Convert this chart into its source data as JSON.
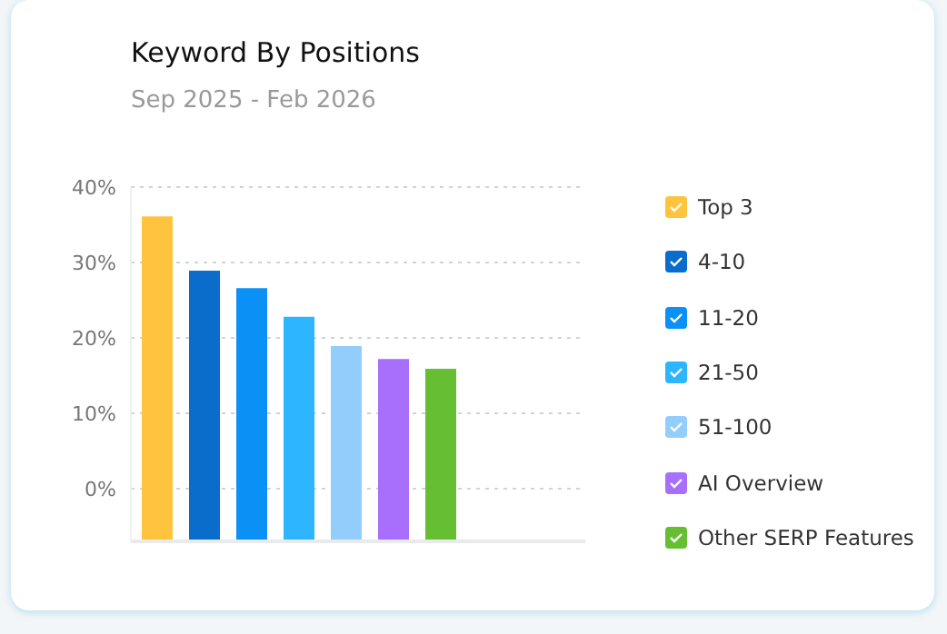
{
  "chart_data": {
    "type": "bar",
    "title": "Keyword By Positions",
    "subtitle": "Sep 2025 - Feb 2026",
    "categories": [
      null
    ],
    "series": [
      {
        "name": "Top 3",
        "color": "#ffc43d",
        "values": [
          43.1
        ],
        "base": [
          -7
        ]
      },
      {
        "name": "4-10",
        "color": "#0a6ccb",
        "values": [
          35.9
        ],
        "base": [
          -7
        ]
      },
      {
        "name": "11-20",
        "color": "#0b91f5",
        "values": [
          33.6
        ],
        "base": [
          -7
        ]
      },
      {
        "name": "21-50",
        "color": "#2db6ff",
        "values": [
          29.8
        ],
        "base": [
          -7
        ]
      },
      {
        "name": "51-100",
        "color": "#92cdfb",
        "values": [
          25.9
        ],
        "base": [
          -7
        ]
      },
      {
        "name": "AI Overview",
        "color": "#a86ffc",
        "values": [
          24.2
        ],
        "base": [
          -7
        ]
      },
      {
        "name": "Other SERP Features",
        "color": "#66bf33",
        "values": [
          22.9
        ],
        "base": [
          -7
        ]
      }
    ],
    "ylim": [
      -7,
      40
    ],
    "yticks": [
      {
        "value": 0,
        "label": "0%"
      },
      {
        "value": 10,
        "label": "10%"
      },
      {
        "value": 20,
        "label": "20%"
      },
      {
        "value": 30,
        "label": "30%"
      },
      {
        "value": 40,
        "label": "40%"
      }
    ],
    "grid": "y",
    "legend": "right",
    "tick_labels": "y"
  }
}
